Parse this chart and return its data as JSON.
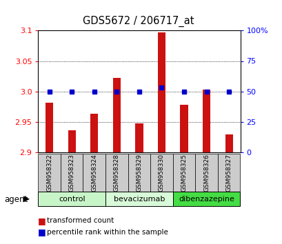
{
  "title": "GDS5672 / 206717_at",
  "samples": [
    "GSM958322",
    "GSM958323",
    "GSM958324",
    "GSM958328",
    "GSM958329",
    "GSM958330",
    "GSM958325",
    "GSM958326",
    "GSM958327"
  ],
  "red_values": [
    2.982,
    2.937,
    2.963,
    3.022,
    2.948,
    3.097,
    2.978,
    3.003,
    2.93
  ],
  "blue_values": [
    50,
    50,
    50,
    50,
    50,
    53,
    50,
    50,
    50
  ],
  "groups": [
    {
      "label": "control",
      "start": 0,
      "end": 3,
      "color": "#c8f5c8"
    },
    {
      "label": "bevacizumab",
      "start": 3,
      "end": 6,
      "color": "#d8fad8"
    },
    {
      "label": "dibenzazepine",
      "start": 6,
      "end": 9,
      "color": "#44dd44"
    }
  ],
  "ylim_left": [
    2.9,
    3.1
  ],
  "ylim_right": [
    0,
    100
  ],
  "yticks_left": [
    2.9,
    2.95,
    3.0,
    3.05,
    3.1
  ],
  "yticks_right": [
    0,
    25,
    50,
    75,
    100
  ],
  "bar_color": "#cc1111",
  "dot_color": "#0000cc",
  "background_color": "#ffffff",
  "label_bg_color": "#cccccc",
  "grid_color": "#000000",
  "agent_label": "agent"
}
